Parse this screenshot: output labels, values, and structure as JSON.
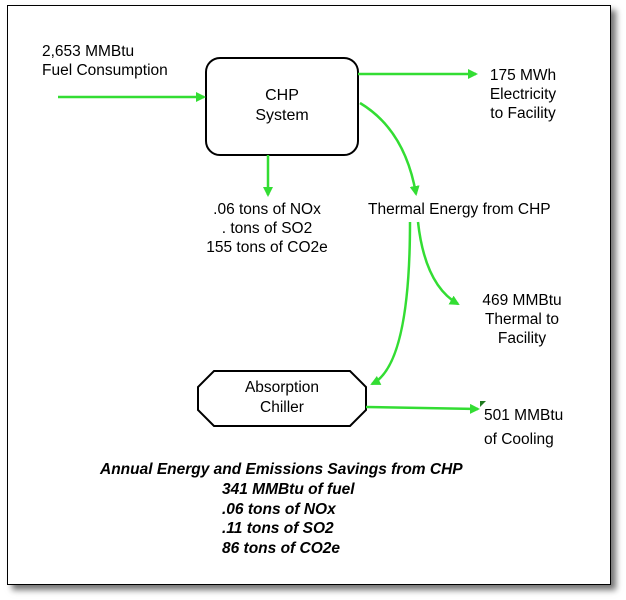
{
  "fuel": {
    "line1": "2,653 MMBtu",
    "line2": "Fuel Consumption"
  },
  "chp": {
    "line1": "CHP",
    "line2": "System"
  },
  "electricity": {
    "line1": "175 MWh",
    "line2": "Electricity",
    "line3": "to Facility"
  },
  "emissions": {
    "line1": ".06 tons of NOx",
    "line2": ". tons of SO2",
    "line3": "155 tons of CO2e"
  },
  "thermal_energy_label": "Thermal Energy from CHP",
  "thermal_facility": {
    "line1": "469 MMBtu",
    "line2": "Thermal to",
    "line3": "Facility"
  },
  "chiller": {
    "line1": "Absorption",
    "line2": "Chiller"
  },
  "cooling": {
    "line1": "501 MMBtu",
    "line2": "of Cooling"
  },
  "summary": {
    "title": "Annual Energy and Emissions Savings from CHP",
    "items": [
      "341 MMBtu of fuel",
      ".06 tons of NOx",
      ".11 tons of SO2",
      "86 tons of CO2e"
    ]
  },
  "colors": {
    "arrow": "#33dd33",
    "box_border": "#000000"
  }
}
